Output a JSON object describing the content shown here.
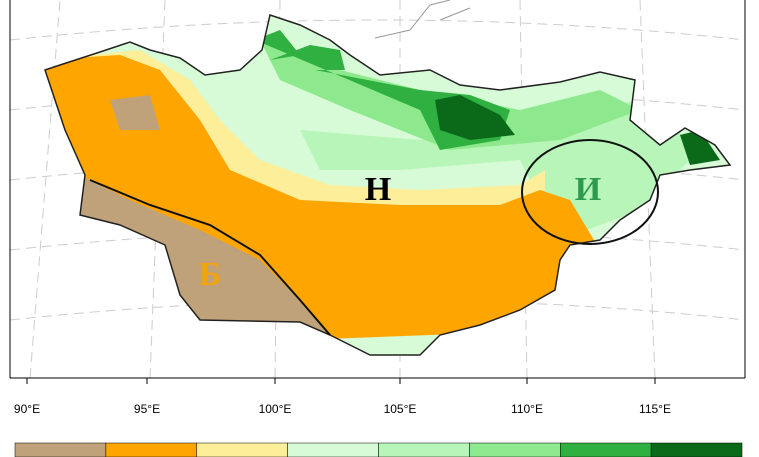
{
  "map": {
    "regions": [
      {
        "label": "Н",
        "color": "#000000"
      },
      {
        "label": "И",
        "color": "#2e9a50"
      },
      {
        "label": "Б",
        "color": "#f2a30f"
      }
    ],
    "lon_labels": [
      "90°E",
      "95°E",
      "100°E",
      "105°E",
      "110°E",
      "115°E"
    ],
    "legend_colors": [
      "#bfa27a",
      "#ffa500",
      "#fdee9a",
      "#d6fbd6",
      "#b8f5b8",
      "#8ee98e",
      "#2fb040",
      "#0a6a1a"
    ]
  }
}
